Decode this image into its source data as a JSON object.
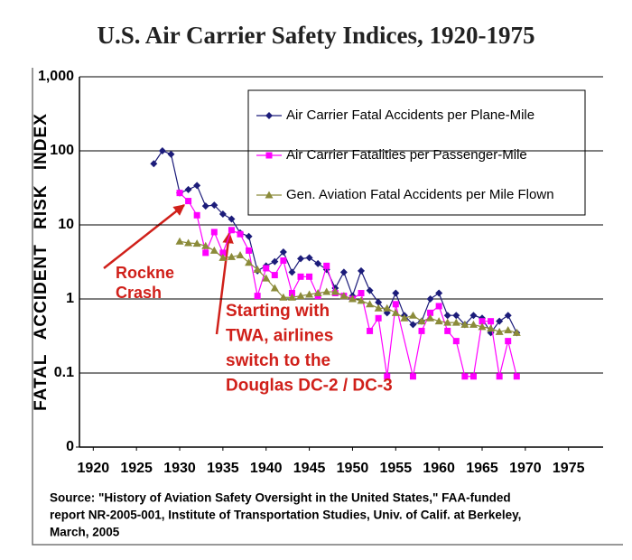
{
  "chart_data": {
    "type": "line",
    "title": "U.S. Air Carrier Safety Indices, 1920-1975",
    "y_label": "FATAL ACCIDENT RISK INDEX",
    "ylog": true,
    "grid": true,
    "legend": "upper right",
    "xlim": [
      1918.4,
      1979
    ],
    "xticks": [
      1920,
      1925,
      1930,
      1935,
      1940,
      1945,
      1950,
      1955,
      1960,
      1965,
      1970,
      1975
    ],
    "ylim": [
      0.01,
      1000
    ],
    "yticks": [
      {
        "value": 0.01,
        "label": "0"
      },
      0.1,
      1,
      10,
      100,
      {
        "value": 1000,
        "label": "1,000"
      }
    ],
    "series": [
      {
        "name": "Air Carrier Fatal Accidents per Plane-Mile",
        "color": "#1c1c7a",
        "marker": "diamond",
        "x": [
          1927,
          1928,
          1929,
          1930,
          1931,
          1932,
          1933,
          1934,
          1935,
          1936,
          1937,
          1938,
          1939,
          1940,
          1941,
          1942,
          1943,
          1944,
          1945,
          1946,
          1947,
          1948,
          1949,
          1950,
          1951,
          1952,
          1953,
          1954,
          1955,
          1956,
          1957,
          1958,
          1959,
          1960,
          1961,
          1962,
          1963,
          1964,
          1965,
          1966,
          1967,
          1968,
          1969
        ],
        "values": [
          67,
          100,
          90,
          27,
          30,
          34,
          18,
          18.5,
          14,
          12,
          7.8,
          7,
          2.4,
          2.8,
          3.2,
          4.3,
          2.3,
          3.5,
          3.6,
          3,
          2.5,
          1.4,
          2.3,
          1.1,
          2.4,
          1.3,
          0.9,
          0.65,
          1.2,
          0.6,
          0.45,
          0.5,
          1.0,
          1.2,
          0.6,
          0.6,
          0.45,
          0.6,
          0.55,
          0.35,
          0.5,
          0.6,
          0.35
        ]
      },
      {
        "name": "Air Carrier Fatalities per Passenger-Mile",
        "color": "#ff00ff",
        "marker": "square",
        "x": [
          1930,
          1931,
          1932,
          1933,
          1934,
          1935,
          1936,
          1937,
          1938,
          1939,
          1940,
          1941,
          1942,
          1943,
          1944,
          1945,
          1946,
          1947,
          1948,
          1949,
          1950,
          1951,
          1952,
          1953,
          1954,
          1955,
          1957,
          1958,
          1959,
          1960,
          1961,
          1962,
          1963,
          1964,
          1965,
          1966,
          1967,
          1968,
          1969
        ],
        "values": [
          27,
          21,
          13.5,
          4.2,
          8,
          4.2,
          8.5,
          7.5,
          4.5,
          1.1,
          2.6,
          2.1,
          3.3,
          1.2,
          2.0,
          2.0,
          1.1,
          2.8,
          1.2,
          1.1,
          1.0,
          1.2,
          0.37,
          0.55,
          0.09,
          0.85,
          0.09,
          0.37,
          0.65,
          0.8,
          0.37,
          0.27,
          0.09,
          0.09,
          0.5,
          0.5,
          0.09,
          0.27,
          0.09
        ]
      },
      {
        "name": "Gen. Aviation Fatal Accidents per Mile Flown",
        "color": "#8b8b3a",
        "marker": "triangle",
        "x": [
          1930,
          1931,
          1932,
          1933,
          1934,
          1935,
          1936,
          1937,
          1938,
          1939,
          1940,
          1941,
          1942,
          1943,
          1944,
          1945,
          1946,
          1947,
          1948,
          1949,
          1950,
          1951,
          1952,
          1953,
          1954,
          1955,
          1956,
          1957,
          1958,
          1959,
          1960,
          1961,
          1962,
          1963,
          1964,
          1965,
          1966,
          1967,
          1968,
          1969
        ],
        "values": [
          6,
          5.7,
          5.6,
          5.2,
          4.5,
          3.6,
          3.7,
          3.9,
          3.1,
          2.5,
          1.9,
          1.4,
          1.05,
          1.05,
          1.1,
          1.15,
          1.2,
          1.25,
          1.25,
          1.1,
          1.0,
          0.95,
          0.85,
          0.75,
          0.75,
          0.65,
          0.55,
          0.6,
          0.5,
          0.55,
          0.5,
          0.48,
          0.48,
          0.45,
          0.45,
          0.42,
          0.4,
          0.36,
          0.38,
          0.35
        ]
      }
    ],
    "annotations": [
      {
        "lines": [
          "Rockne",
          "Crash"
        ]
      },
      {
        "lines": [
          "Starting with",
          "TWA, airlines",
          "switch to the",
          "Douglas DC-2 / DC-3"
        ]
      }
    ],
    "source": [
      "Source:  \"History of Aviation Safety Oversight in the United States,\" FAA-funded",
      "report NR-2005-001, Institute of Transportation Studies, Univ. of Calif. at Berkeley,",
      "March, 2005"
    ]
  }
}
